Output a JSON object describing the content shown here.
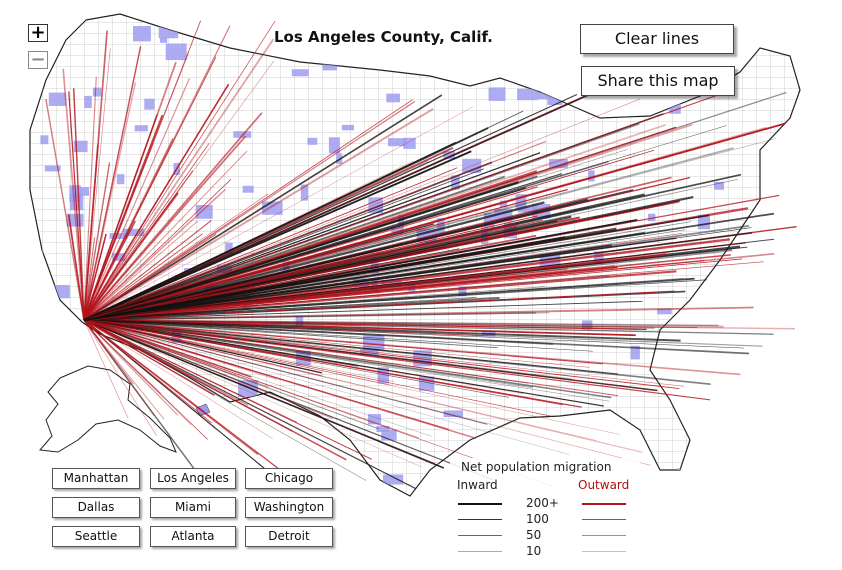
{
  "title": "Los Angeles County, Calif.",
  "buttons": {
    "zoom_in": "+",
    "zoom_out": "−",
    "clear_lines": "Clear lines",
    "share_map": "Share this map"
  },
  "city_buttons": [
    [
      "Manhattan",
      "Los Angeles",
      "Chicago"
    ],
    [
      "Dallas",
      "Miami",
      "Washington"
    ],
    [
      "Seattle",
      "Atlanta",
      "Detroit"
    ]
  ],
  "legend": {
    "title": "Net population migration",
    "inward_label": "Inward",
    "outward_label": "Outward",
    "rows": [
      {
        "label": "200+",
        "value": 200
      },
      {
        "label": "100",
        "value": 100
      },
      {
        "label": "50",
        "value": 50
      },
      {
        "label": "10",
        "value": 10
      }
    ]
  },
  "colors": {
    "inward": "#111111",
    "outward": "#b3121a",
    "highlight_county": "#9f9df0",
    "land": "#ffffff",
    "border": "#222222"
  },
  "icons": {
    "zoom_in": "plus-icon",
    "zoom_out": "minus-icon"
  }
}
